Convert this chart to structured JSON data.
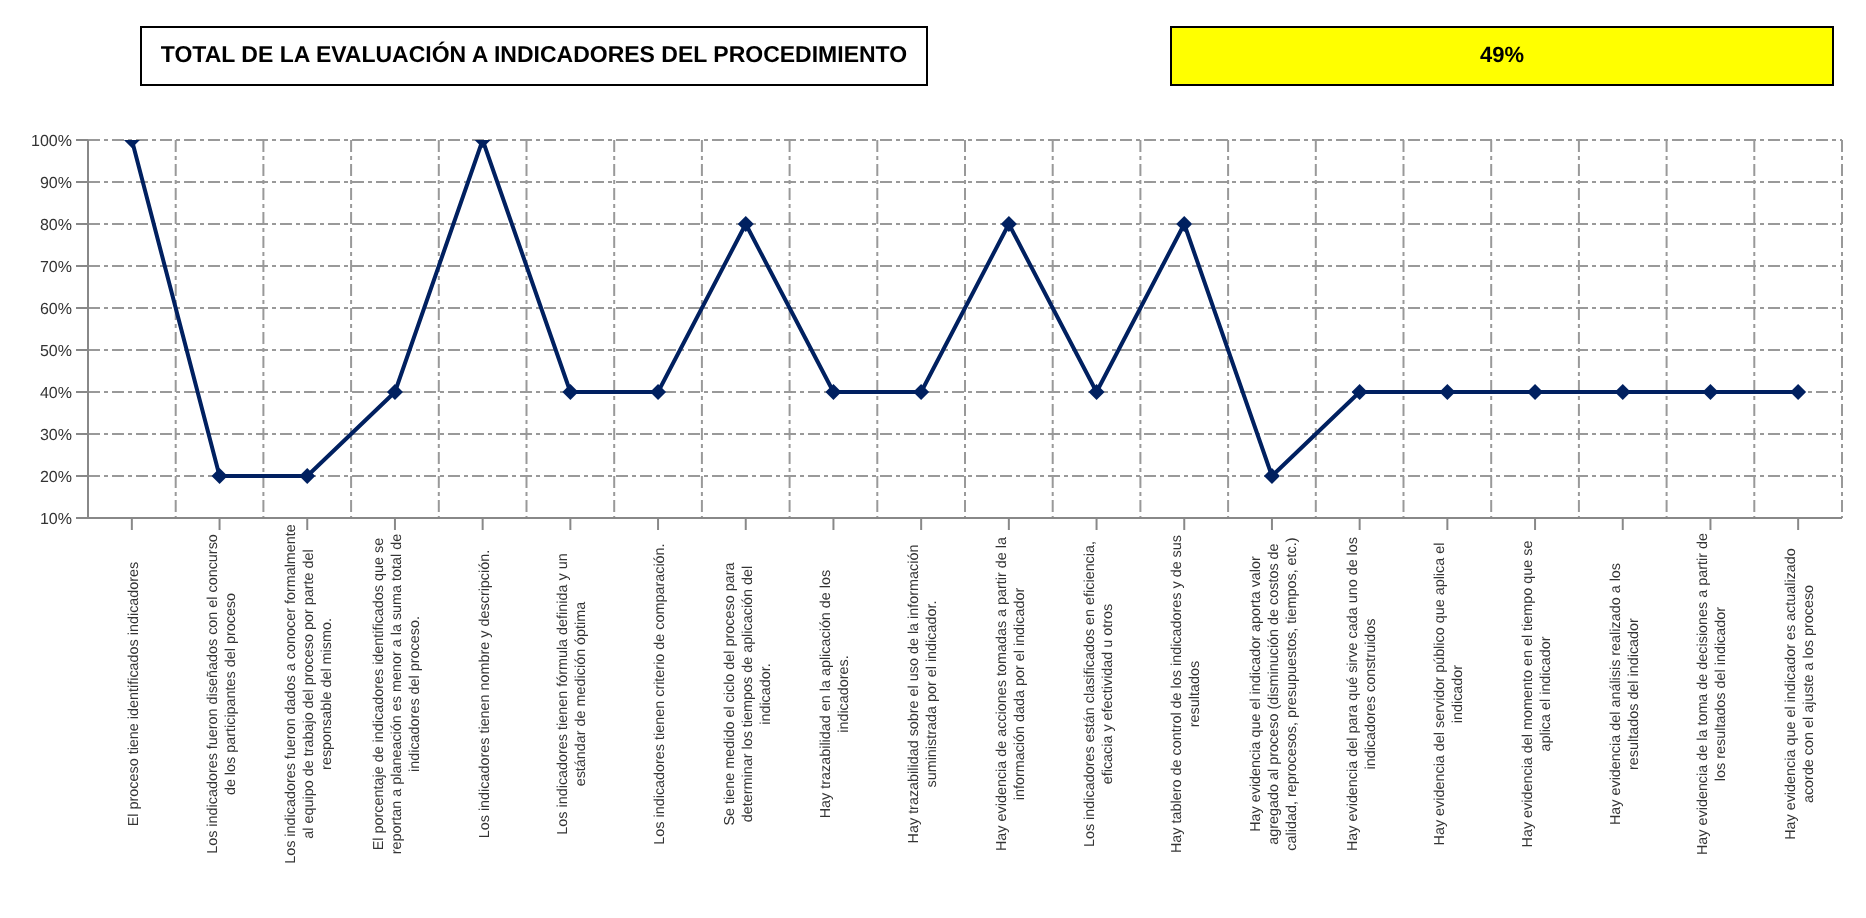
{
  "chart_data": {
    "type": "line",
    "title": "TOTAL DE LA EVALUACIÓN A INDICADORES DEL PROCEDIMIENTO",
    "annotations": [
      "49%"
    ],
    "categories": [
      "El proceso tiene identificados indicadores",
      "Los indicadores fueron diseñados con el concurso de los participantes del proceso",
      "Los indicadores fueron dados a conocer formalmente al equipo de trabajo del proceso por parte del responsable del mismo.",
      "El porcentaje de indicadores identificados que se reportan a planeación es menor a la suma total de indicadores del proceso.",
      "Los indicadores tienen nombre y descripción.",
      "Los indicadores tienen fórmula definida y un estándar de medición óptima",
      "Los indicadores tienen criterio de comparación.",
      "Se tiene medido el ciclo del proceso para determinar los tiempos de aplicación del indicador.",
      "Hay trazabilidad en la aplicación de los indicadores.",
      "Hay trazabilidad sobre el uso de la información suministrada por el indicador.",
      "Hay evidencia de acciones tomadas a partir de la información dada por el indicador",
      "Los indicadores están clasificados en eficiencia, eficacia y efectividad u otros",
      "Hay tablero de control de los indicadores y de sus resultados",
      "Hay evidencia que el indicador aporta valor agregado al proceso (disminución de costos de calidad, reprocesos, presupuestos, tiempos, etc.)",
      "Hay evidencia del para qué sirve cada uno de los indicadores construidos",
      "Hay evidencia del servidor público que aplica el indicador",
      "Hay evidencia del momento en el tiempo que se aplica el indicador",
      "Hay evidencia del análisis realizado a los resultados del indicador",
      "Hay evidencia de la toma de decisiones a partir de los resultados del indicador",
      "Hay evidencia que el indicador es actualizado acorde con el ajuste a los proceso"
    ],
    "series": [
      {
        "color": "#002060",
        "values": [
          100,
          20,
          20,
          40,
          100,
          40,
          40,
          80,
          40,
          40,
          80,
          40,
          80,
          20,
          40,
          40,
          40,
          40,
          40,
          40
        ]
      }
    ],
    "ylim": [
      10,
      100
    ],
    "yticks": [
      {
        "value": 10,
        "label": "10%"
      },
      {
        "value": 20,
        "label": "20%"
      },
      {
        "value": 30,
        "label": "30%"
      },
      {
        "value": 40,
        "label": "40%"
      },
      {
        "value": 50,
        "label": "50%"
      },
      {
        "value": 60,
        "label": "60%"
      },
      {
        "value": 70,
        "label": "70%"
      },
      {
        "value": 80,
        "label": "80%"
      },
      {
        "value": 90,
        "label": "90%"
      },
      {
        "value": 100,
        "label": "100%"
      }
    ],
    "grid": true,
    "marker": "diamond",
    "line_style": "solid",
    "legend": false
  }
}
